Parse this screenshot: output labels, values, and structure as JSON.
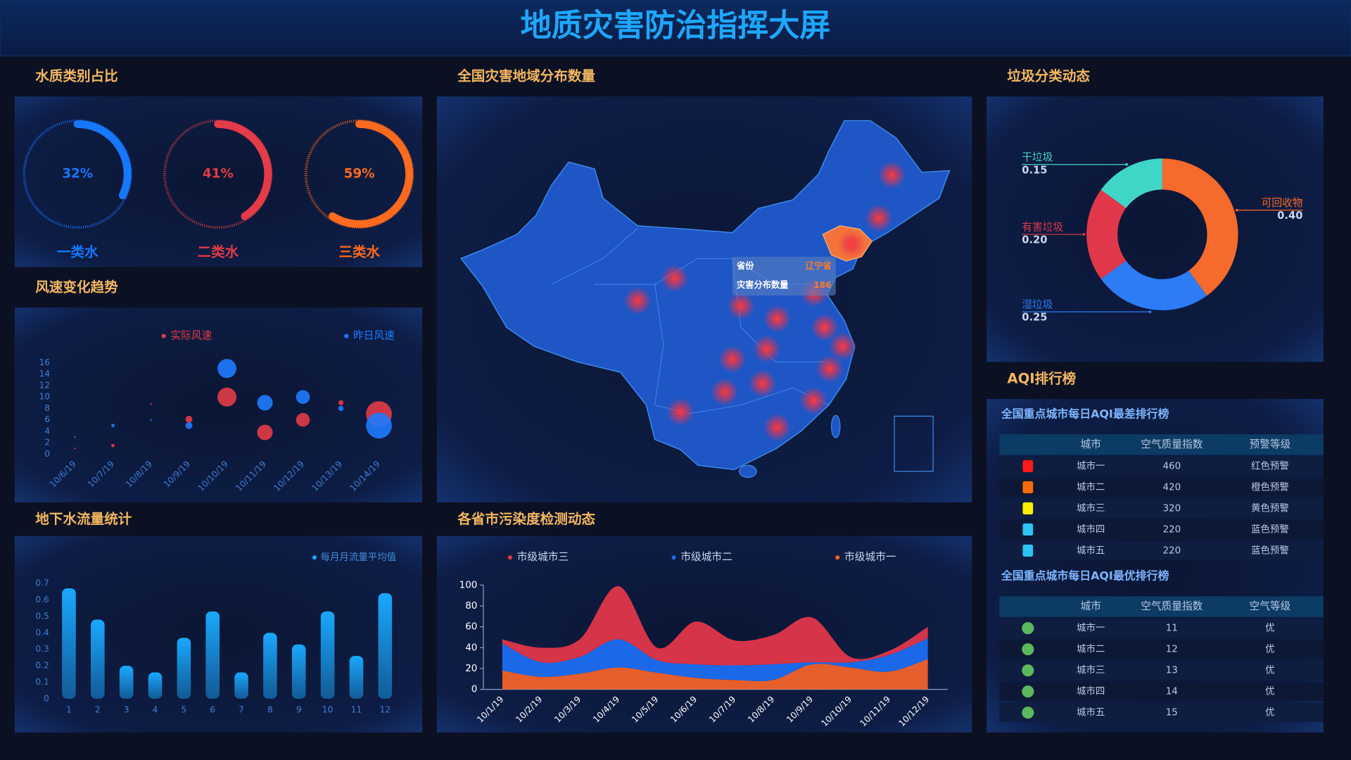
{
  "header": {
    "title": "地质灾害防治指挥大屏"
  },
  "chart_data": [
    {
      "type": "gauge",
      "title": "水质类别占比",
      "categories": [
        "一类水",
        "二类水",
        "三类水"
      ],
      "values": [
        32,
        41,
        59
      ],
      "value_labels": [
        "32%",
        "41%",
        "59%"
      ],
      "colors": [
        "#1677ff",
        "#e33b47",
        "#ff6a1f"
      ]
    },
    {
      "type": "bubble",
      "title": "风速变化趋势",
      "categories": [
        "10/6/19",
        "10/7/19",
        "10/8/19",
        "10/9/19",
        "10/10/19",
        "10/11/19",
        "10/12/19",
        "10/13/19",
        "10/14/19"
      ],
      "series": [
        {
          "name": "实际风速",
          "color": "#e33b47",
          "values": [
            1,
            1.5,
            8.8,
            6.1,
            10,
            3.8,
            6,
            9,
            7
          ],
          "sizes": [
            1,
            2,
            1,
            4,
            11,
            9,
            8,
            3,
            15
          ]
        },
        {
          "name": "昨日风速",
          "color": "#1f7bff",
          "values": [
            3,
            5,
            6,
            5,
            15,
            9,
            10,
            8,
            5
          ],
          "sizes": [
            1,
            2,
            1,
            4,
            11,
            9,
            8,
            3,
            15
          ]
        }
      ],
      "ylim": [
        0,
        16
      ],
      "yticks": [
        0,
        2,
        4,
        6,
        8,
        10,
        12,
        14,
        16
      ]
    },
    {
      "type": "bar",
      "title": "地下水流量统计",
      "categories": [
        "1",
        "2",
        "3",
        "4",
        "5",
        "6",
        "7",
        "8",
        "9",
        "10",
        "11",
        "12"
      ],
      "series": [
        {
          "name": "每月月流量平均值",
          "color": "#1aa8ff",
          "values": [
            0.67,
            0.48,
            0.2,
            0.16,
            0.37,
            0.53,
            0.16,
            0.4,
            0.33,
            0.53,
            0.26,
            0.64
          ]
        }
      ],
      "ylim": [
        0,
        0.7
      ],
      "yticks": [
        0,
        0.1,
        0.2,
        0.3,
        0.4,
        0.5,
        0.6,
        0.7
      ]
    },
    {
      "type": "area",
      "title": "各省市污染度检测动态",
      "stacked": true,
      "categories": [
        "10/1/19",
        "10/2/19",
        "10/3/19",
        "10/4/19",
        "10/5/19",
        "10/6/19",
        "10/7/19",
        "10/8/19",
        "10/9/19",
        "10/10/19",
        "10/11/19",
        "10/12/19"
      ],
      "series": [
        {
          "name": "市级城市三",
          "color": "#e0364a",
          "values": [
            4,
            14,
            17,
            51,
            12,
            41,
            24,
            28,
            43,
            5,
            4,
            11
          ]
        },
        {
          "name": "市级城市二",
          "color": "#1c6ef2",
          "values": [
            26,
            14,
            16,
            27,
            12,
            13,
            14,
            15,
            2,
            5,
            16,
            20
          ]
        },
        {
          "name": "市级城市一",
          "color": "#f2622a",
          "values": [
            18,
            12,
            15,
            21,
            16,
            11,
            9,
            9,
            24,
            21,
            17,
            29
          ]
        }
      ],
      "ylim": [
        0,
        100
      ],
      "yticks": [
        0,
        20,
        40,
        60,
        80,
        100
      ]
    },
    {
      "type": "pie",
      "title": "垃圾分类动态",
      "categories": [
        "可回收物",
        "湿垃圾",
        "有害垃圾",
        "干垃圾"
      ],
      "values": [
        0.4,
        0.25,
        0.2,
        0.15
      ],
      "value_labels": [
        "0.40",
        "0.25",
        "0.20",
        "0.15"
      ],
      "colors": [
        "#f66a2c",
        "#2d7cf6",
        "#e0384a",
        "#3fd6c8"
      ]
    }
  ],
  "map": {
    "title": "全国灾害地域分布数量",
    "tooltip": {
      "province_label": "省份",
      "province": "辽宁省",
      "count_label": "灾害分布数量",
      "count": 186
    }
  },
  "aqi": {
    "title": "AQI排行榜",
    "tables": [
      {
        "title": "全国重点城市每日AQI最差排行榜",
        "header": [
          "城市",
          "空气质量指数",
          "预警等级"
        ],
        "rows": [
          [
            "城市一",
            460,
            "红色预警"
          ],
          [
            "城市二",
            420,
            "橙色预警"
          ],
          [
            "城市三",
            320,
            "黄色预警"
          ],
          [
            "城市四",
            220,
            "蓝色预警"
          ],
          [
            "城市五",
            220,
            "蓝色预警"
          ]
        ],
        "icon_colors": [
          "#ff1a1a",
          "#ff6a00",
          "#ffee00",
          "#2cc4f5",
          "#2cc4f5"
        ]
      },
      {
        "title": "全国重点城市每日AQI最优排行榜",
        "header": [
          "城市",
          "空气质量指数",
          "空气等级"
        ],
        "rows": [
          [
            "城市一",
            11,
            "优"
          ],
          [
            "城市二",
            12,
            "优"
          ],
          [
            "城市三",
            13,
            "优"
          ],
          [
            "城市四",
            14,
            "优"
          ],
          [
            "城市五",
            15,
            "优"
          ]
        ],
        "icon_colors": [
          "#5cb85c",
          "#5cb85c",
          "#5cb85c",
          "#5cb85c",
          "#5cb85c"
        ]
      }
    ]
  }
}
